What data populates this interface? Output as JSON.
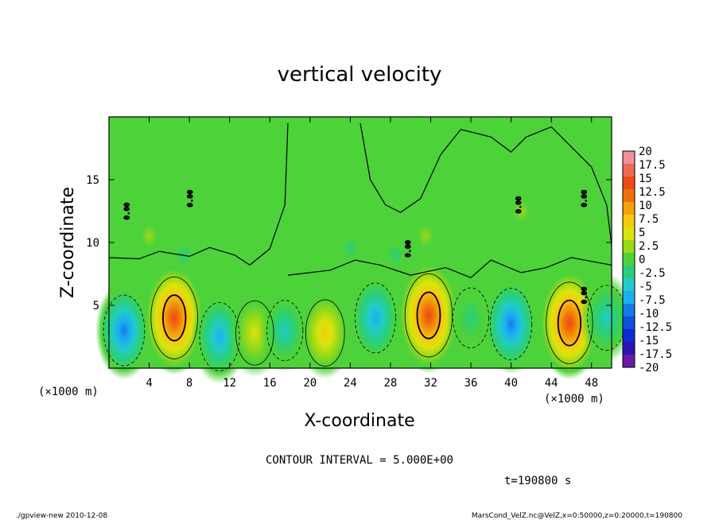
{
  "chart_data": {
    "type": "heatmap",
    "title": "vertical velocity",
    "xlabel": "X-coordinate",
    "ylabel": "Z-coordinate",
    "x_unit": "(×1000 m)",
    "y_unit": "(×1000 m)",
    "xlim": [
      0,
      50
    ],
    "ylim": [
      0,
      20
    ],
    "x_ticks": [
      4,
      8,
      12,
      16,
      20,
      24,
      28,
      32,
      36,
      40,
      44,
      48
    ],
    "y_ticks": [
      5,
      10,
      15
    ],
    "contour_interval_text": "CONTOUR INTERVAL = 5.000E+00",
    "time_text": "t=190800 s",
    "contour_label": "0.00",
    "colorbar": {
      "labels": [
        "20",
        "17.5",
        "15",
        "12.5",
        "10",
        "7.5",
        "5",
        "2.5",
        "0",
        "-2.5",
        "-5",
        "-7.5",
        "-10",
        "-12.5",
        "-15",
        "-17.5",
        "-20"
      ],
      "colors": [
        "#f2909a",
        "#ef6a55",
        "#ee4a18",
        "#f06f0a",
        "#f4a10a",
        "#f7cb0d",
        "#d9e40d",
        "#9ad917",
        "#4dd23a",
        "#29cf7b",
        "#22ccc6",
        "#1aaff2",
        "#147be6",
        "#1050de",
        "#0c2bd4",
        "#2a14b4",
        "#6a1aa8"
      ]
    },
    "series": [
      {
        "x": 1.5,
        "z": 3.0,
        "w": -8.8
      },
      {
        "x": 6.5,
        "z": 4.0,
        "w": 14.2
      },
      {
        "x": 11.0,
        "z": 2.5,
        "w": -7.6
      },
      {
        "x": 14.5,
        "z": 2.8,
        "w": 5.6
      },
      {
        "x": 17.5,
        "z": 3.0,
        "w": -3.8
      },
      {
        "x": 21.5,
        "z": 2.8,
        "w": 6.6
      },
      {
        "x": 26.5,
        "z": 4.0,
        "w": -8.4
      },
      {
        "x": 31.8,
        "z": 4.2,
        "w": 14.8
      },
      {
        "x": 36.0,
        "z": 4.0,
        "w": -3.6
      },
      {
        "x": 40.0,
        "z": 3.5,
        "w": -9.2
      },
      {
        "x": 45.8,
        "z": 3.6,
        "w": 14.0
      },
      {
        "x": 49.5,
        "z": 4.0,
        "w": -6.0
      },
      {
        "x": 4.0,
        "z": 10.5,
        "w": 3.2
      },
      {
        "x": 31.5,
        "z": 10.5,
        "w": 2.8
      },
      {
        "x": 41.0,
        "z": 12.5,
        "w": 3.0
      },
      {
        "x": 7.5,
        "z": 9.0,
        "w": -2.6
      },
      {
        "x": 28.5,
        "z": 9.0,
        "w": -2.4
      },
      {
        "x": 24.0,
        "z": 9.5,
        "w": -1.8
      }
    ]
  },
  "footer": {
    "left": "./gpview-new   2010-12-08",
    "right": "MarsCond_VelZ.nc@VelZ,x=0:50000,z=0:20000,t=190800"
  }
}
